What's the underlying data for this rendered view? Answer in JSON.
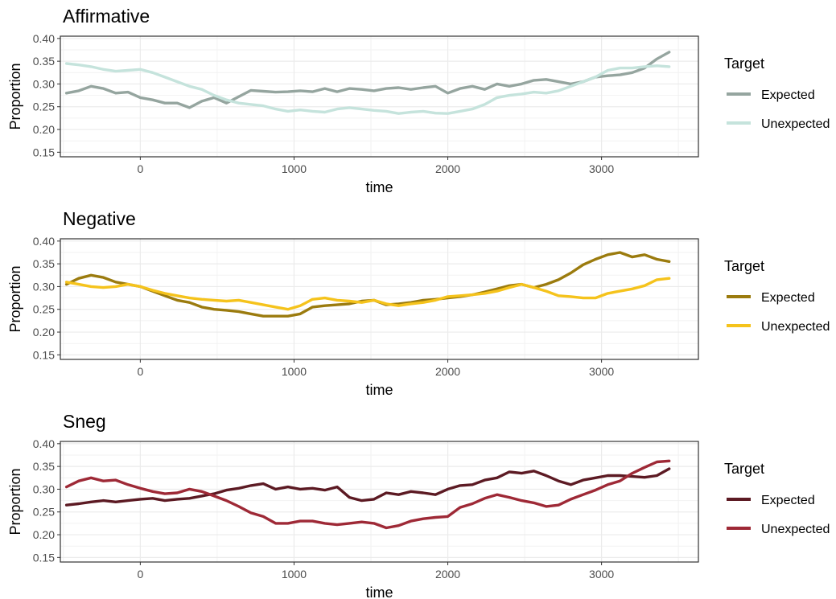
{
  "legend_title": "Target",
  "chart_data": [
    {
      "type": "line",
      "title": "Affirmative",
      "xlabel": "time",
      "ylabel": "Proportion",
      "xlim": [
        -520,
        3630
      ],
      "ylim": [
        0.14,
        0.405
      ],
      "xticks": [
        0,
        1000,
        2000,
        3000
      ],
      "xtick_labels": [
        "0",
        "1000",
        "2000",
        "3000"
      ],
      "yticks": [
        0.15,
        0.2,
        0.25,
        0.3,
        0.35,
        0.4
      ],
      "ytick_labels": [
        "0.15",
        "0.20",
        "0.25",
        "0.30",
        "0.35",
        "0.40"
      ],
      "grid": true,
      "legend": "right",
      "series": [
        {
          "name": "Expected",
          "color": "#95a59f",
          "x": [
            -480,
            -400,
            -320,
            -240,
            -160,
            -80,
            0,
            80,
            160,
            240,
            320,
            400,
            480,
            560,
            640,
            720,
            800,
            880,
            960,
            1040,
            1120,
            1200,
            1280,
            1360,
            1440,
            1520,
            1600,
            1680,
            1760,
            1840,
            1920,
            2000,
            2080,
            2160,
            2240,
            2320,
            2400,
            2480,
            2560,
            2640,
            2720,
            2800,
            2880,
            2960,
            3040,
            3120,
            3200,
            3280,
            3360,
            3440
          ],
          "y": [
            0.28,
            0.285,
            0.295,
            0.29,
            0.28,
            0.282,
            0.27,
            0.265,
            0.258,
            0.258,
            0.248,
            0.262,
            0.27,
            0.258,
            0.272,
            0.286,
            0.284,
            0.282,
            0.283,
            0.285,
            0.283,
            0.29,
            0.283,
            0.29,
            0.288,
            0.285,
            0.29,
            0.292,
            0.288,
            0.292,
            0.295,
            0.28,
            0.29,
            0.295,
            0.288,
            0.3,
            0.295,
            0.3,
            0.308,
            0.31,
            0.305,
            0.3,
            0.305,
            0.315,
            0.318,
            0.32,
            0.325,
            0.335,
            0.355,
            0.37
          ]
        },
        {
          "name": "Unexpected",
          "color": "#c5e3dc",
          "x": [
            -480,
            -400,
            -320,
            -240,
            -160,
            -80,
            0,
            80,
            160,
            240,
            320,
            400,
            480,
            560,
            640,
            720,
            800,
            880,
            960,
            1040,
            1120,
            1200,
            1280,
            1360,
            1440,
            1520,
            1600,
            1680,
            1760,
            1840,
            1920,
            2000,
            2080,
            2160,
            2240,
            2320,
            2400,
            2480,
            2560,
            2640,
            2720,
            2800,
            2880,
            2960,
            3040,
            3120,
            3200,
            3280,
            3360,
            3440
          ],
          "y": [
            0.345,
            0.342,
            0.338,
            0.332,
            0.328,
            0.33,
            0.332,
            0.325,
            0.315,
            0.305,
            0.295,
            0.288,
            0.275,
            0.265,
            0.258,
            0.255,
            0.252,
            0.245,
            0.24,
            0.243,
            0.24,
            0.238,
            0.245,
            0.248,
            0.245,
            0.242,
            0.24,
            0.235,
            0.238,
            0.24,
            0.236,
            0.235,
            0.24,
            0.245,
            0.255,
            0.27,
            0.275,
            0.278,
            0.282,
            0.28,
            0.285,
            0.295,
            0.305,
            0.315,
            0.33,
            0.335,
            0.335,
            0.338,
            0.34,
            0.338
          ]
        }
      ]
    },
    {
      "type": "line",
      "title": "Negative",
      "xlabel": "time",
      "ylabel": "Proportion",
      "xlim": [
        -520,
        3630
      ],
      "ylim": [
        0.14,
        0.405
      ],
      "xticks": [
        0,
        1000,
        2000,
        3000
      ],
      "xtick_labels": [
        "0",
        "1000",
        "2000",
        "3000"
      ],
      "yticks": [
        0.15,
        0.2,
        0.25,
        0.3,
        0.35,
        0.4
      ],
      "ytick_labels": [
        "0.15",
        "0.20",
        "0.25",
        "0.30",
        "0.35",
        "0.40"
      ],
      "grid": true,
      "legend": "right",
      "series": [
        {
          "name": "Expected",
          "color": "#9b7b0e",
          "x": [
            -480,
            -400,
            -320,
            -240,
            -160,
            -80,
            0,
            80,
            160,
            240,
            320,
            400,
            480,
            560,
            640,
            720,
            800,
            880,
            960,
            1040,
            1120,
            1200,
            1280,
            1360,
            1440,
            1520,
            1600,
            1680,
            1760,
            1840,
            1920,
            2000,
            2080,
            2160,
            2240,
            2320,
            2400,
            2480,
            2560,
            2640,
            2720,
            2800,
            2880,
            2960,
            3040,
            3120,
            3200,
            3280,
            3360,
            3440
          ],
          "y": [
            0.305,
            0.318,
            0.325,
            0.32,
            0.31,
            0.305,
            0.3,
            0.29,
            0.28,
            0.27,
            0.265,
            0.255,
            0.25,
            0.248,
            0.245,
            0.24,
            0.235,
            0.235,
            0.235,
            0.24,
            0.255,
            0.258,
            0.26,
            0.262,
            0.268,
            0.27,
            0.26,
            0.262,
            0.265,
            0.27,
            0.272,
            0.275,
            0.278,
            0.282,
            0.288,
            0.295,
            0.302,
            0.305,
            0.298,
            0.305,
            0.315,
            0.33,
            0.348,
            0.36,
            0.37,
            0.375,
            0.365,
            0.37,
            0.36,
            0.355
          ]
        },
        {
          "name": "Unexpected",
          "color": "#f5c31c",
          "x": [
            -480,
            -400,
            -320,
            -240,
            -160,
            -80,
            0,
            80,
            160,
            240,
            320,
            400,
            480,
            560,
            640,
            720,
            800,
            880,
            960,
            1040,
            1120,
            1200,
            1280,
            1360,
            1440,
            1520,
            1600,
            1680,
            1760,
            1840,
            1920,
            2000,
            2080,
            2160,
            2240,
            2320,
            2400,
            2480,
            2560,
            2640,
            2720,
            2800,
            2880,
            2960,
            3040,
            3120,
            3200,
            3280,
            3360,
            3440
          ],
          "y": [
            0.31,
            0.305,
            0.3,
            0.298,
            0.3,
            0.305,
            0.3,
            0.292,
            0.285,
            0.28,
            0.275,
            0.272,
            0.27,
            0.268,
            0.27,
            0.265,
            0.26,
            0.255,
            0.25,
            0.258,
            0.272,
            0.275,
            0.27,
            0.268,
            0.265,
            0.27,
            0.262,
            0.258,
            0.262,
            0.265,
            0.27,
            0.278,
            0.28,
            0.282,
            0.285,
            0.29,
            0.298,
            0.305,
            0.298,
            0.29,
            0.28,
            0.278,
            0.275,
            0.275,
            0.285,
            0.29,
            0.295,
            0.302,
            0.315,
            0.318
          ]
        }
      ]
    },
    {
      "type": "line",
      "title": "Sneg",
      "xlabel": "time",
      "ylabel": "Proportion",
      "xlim": [
        -520,
        3630
      ],
      "ylim": [
        0.14,
        0.405
      ],
      "xticks": [
        0,
        1000,
        2000,
        3000
      ],
      "xtick_labels": [
        "0",
        "1000",
        "2000",
        "3000"
      ],
      "yticks": [
        0.15,
        0.2,
        0.25,
        0.3,
        0.35,
        0.4
      ],
      "ytick_labels": [
        "0.15",
        "0.20",
        "0.25",
        "0.30",
        "0.35",
        "0.40"
      ],
      "grid": true,
      "legend": "right",
      "series": [
        {
          "name": "Expected",
          "color": "#5c1a23",
          "x": [
            -480,
            -400,
            -320,
            -240,
            -160,
            -80,
            0,
            80,
            160,
            240,
            320,
            400,
            480,
            560,
            640,
            720,
            800,
            880,
            960,
            1040,
            1120,
            1200,
            1280,
            1360,
            1440,
            1520,
            1600,
            1680,
            1760,
            1840,
            1920,
            2000,
            2080,
            2160,
            2240,
            2320,
            2400,
            2480,
            2560,
            2640,
            2720,
            2800,
            2880,
            2960,
            3040,
            3120,
            3200,
            3280,
            3360,
            3440
          ],
          "y": [
            0.265,
            0.268,
            0.272,
            0.275,
            0.272,
            0.275,
            0.278,
            0.28,
            0.275,
            0.278,
            0.28,
            0.285,
            0.29,
            0.298,
            0.302,
            0.308,
            0.312,
            0.3,
            0.305,
            0.3,
            0.302,
            0.298,
            0.305,
            0.282,
            0.275,
            0.278,
            0.292,
            0.288,
            0.295,
            0.292,
            0.288,
            0.3,
            0.308,
            0.31,
            0.32,
            0.325,
            0.338,
            0.335,
            0.34,
            0.33,
            0.318,
            0.31,
            0.32,
            0.325,
            0.33,
            0.33,
            0.328,
            0.326,
            0.33,
            0.345
          ]
        },
        {
          "name": "Unexpected",
          "color": "#9e2936",
          "x": [
            -480,
            -400,
            -320,
            -240,
            -160,
            -80,
            0,
            80,
            160,
            240,
            320,
            400,
            480,
            560,
            640,
            720,
            800,
            880,
            960,
            1040,
            1120,
            1200,
            1280,
            1360,
            1440,
            1520,
            1600,
            1680,
            1760,
            1840,
            1920,
            2000,
            2080,
            2160,
            2240,
            2320,
            2400,
            2480,
            2560,
            2640,
            2720,
            2800,
            2880,
            2960,
            3040,
            3120,
            3200,
            3280,
            3360,
            3440
          ],
          "y": [
            0.305,
            0.318,
            0.325,
            0.318,
            0.32,
            0.31,
            0.302,
            0.295,
            0.29,
            0.292,
            0.3,
            0.295,
            0.285,
            0.275,
            0.262,
            0.248,
            0.24,
            0.225,
            0.225,
            0.23,
            0.23,
            0.225,
            0.222,
            0.225,
            0.228,
            0.225,
            0.215,
            0.22,
            0.23,
            0.235,
            0.238,
            0.24,
            0.26,
            0.268,
            0.28,
            0.288,
            0.282,
            0.275,
            0.27,
            0.262,
            0.265,
            0.278,
            0.288,
            0.298,
            0.31,
            0.318,
            0.335,
            0.348,
            0.36,
            0.362
          ]
        }
      ]
    }
  ]
}
